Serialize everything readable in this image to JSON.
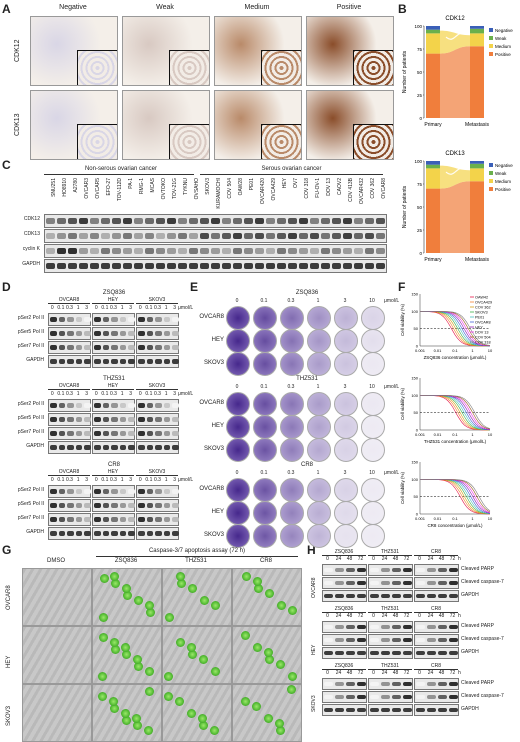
{
  "panel_letters": [
    "A",
    "B",
    "C",
    "D",
    "E",
    "F",
    "G",
    "H"
  ],
  "A": {
    "columns": [
      "Negative",
      "Weak",
      "Medium",
      "Positive"
    ],
    "rows": [
      "CDK12",
      "CDK13"
    ],
    "tint": [
      "#d9d6e6",
      "#d8c9c2",
      "#b98a69",
      "#8a4d2a"
    ]
  },
  "B": {
    "charts": [
      {
        "title": "CDK12",
        "ylabel": "Number of patients",
        "xcats": [
          "Primary",
          "Metastasis"
        ],
        "yticks": [
          "0",
          "25",
          "50",
          "75",
          "100"
        ],
        "legend": [
          "Negative",
          "Weak",
          "Medium",
          "Positive"
        ],
        "colors": [
          "#3a5fb8",
          "#6ab04c",
          "#f3d34a",
          "#f07e3c"
        ]
      },
      {
        "title": "CDK13",
        "ylabel": "Number of patients",
        "xcats": [
          "Primary",
          "Metastasis"
        ],
        "yticks": [
          "0",
          "25",
          "50",
          "75",
          "100"
        ],
        "legend": [
          "Negative",
          "Weak",
          "Medium",
          "Positive"
        ],
        "colors": [
          "#3a5fb8",
          "#6ab04c",
          "#f3d34a",
          "#f07e3c"
        ]
      }
    ]
  },
  "C": {
    "group1": "Non-serous ovarian cancer",
    "group2": "Serous ovarian cancer",
    "lanes": [
      "SNU251",
      "HO8910",
      "A2780",
      "OVCAR3",
      "OVCAR5",
      "EFO-27",
      "TOV-112D",
      "PA-1",
      "RMG-1",
      "MCAS",
      "OVTOKO",
      "TOV-21G",
      "TYKNU",
      "OVSAHO",
      "SKOV3",
      "KURAMOCHI",
      "COV 504",
      "OAW28",
      "PE01",
      "OVCAR420",
      "OVCA429",
      "HEY",
      "OV7",
      "COV 318",
      "FU-OV-1",
      "DOV 13",
      "CAOV2",
      "COV 413B",
      "OVCAR432",
      "COV 362",
      "OVCAR8"
    ],
    "rows": [
      "CDK12",
      "CDK13",
      "cyclin K",
      "GAPDH"
    ]
  },
  "D": {
    "blocks": [
      {
        "drug": "ZSQ836",
        "cells": [
          "OVCAR8",
          "HEY",
          "SKOV3"
        ],
        "doses": [
          "0",
          "0.1",
          "0.3",
          "1",
          "3"
        ],
        "unit": "μmol/L",
        "rows": [
          "pSer2 Pol II",
          "pSer5 Pol II",
          "pSer7 Pol II",
          "GAPDH"
        ]
      },
      {
        "drug": "THZ531",
        "cells": [
          "OVCAR8",
          "HEY",
          "SKOV3"
        ],
        "doses": [
          "0",
          "0.1",
          "0.3",
          "1",
          "3"
        ],
        "unit": "μmol/L",
        "rows": [
          "pSer2 Pol II",
          "pSer5 Pol II",
          "pSer7 Pol II",
          "GAPDH"
        ]
      },
      {
        "drug": "CR8",
        "cells": [
          "OVCAR8",
          "HEY",
          "SKOV3"
        ],
        "doses": [
          "0",
          "0.1",
          "0.3",
          "1",
          "3"
        ],
        "unit": "μmol/L",
        "rows": [
          "pSer2 Pol II",
          "pSer5 Pol II",
          "pSer7 Pol II",
          "GAPDH"
        ]
      }
    ]
  },
  "E": {
    "blocks": [
      {
        "drug": "ZSQ836",
        "doses": [
          "0",
          "0.1",
          "0.3",
          "1",
          "3",
          "10"
        ],
        "unit": "μmol/L",
        "cells": [
          "OVCAR8",
          "HEY",
          "SKOV3"
        ]
      },
      {
        "drug": "THZ531",
        "doses": [
          "0",
          "0.1",
          "0.3",
          "1",
          "3",
          "10"
        ],
        "unit": "μmol/L",
        "cells": [
          "OVCAR8",
          "HEY",
          "SKOV3"
        ]
      },
      {
        "drug": "CR8",
        "doses": [
          "0",
          "0.1",
          "0.3",
          "1",
          "3",
          "10"
        ],
        "unit": "μmol/L",
        "cells": [
          "OVCAR8",
          "HEY",
          "SKOV3"
        ]
      }
    ]
  },
  "F": {
    "ylabel": "Cell viability (%)",
    "xticks": [
      "0.001",
      "0.01",
      "0.1",
      "1",
      "10"
    ],
    "yticks": [
      "0",
      "50",
      "100",
      "150"
    ],
    "xlabels": [
      "ZSQ836 concentration (μmol/L)",
      "THZ531 concentration (μmol/L)",
      "CR8 concentration (μmol/L)"
    ],
    "legend": [
      "OAW42",
      "OVCA429",
      "COV 362",
      "SKOV3",
      "PE01",
      "OVCAR8",
      "HEY",
      "DOV 13",
      "COV 504",
      "COV 318"
    ],
    "colors": [
      "#e6194b",
      "#f58231",
      "#d4a017",
      "#3cb44b",
      "#46c0c0",
      "#4363d8",
      "#911eb4",
      "#f032e6",
      "#9a6324",
      "#808080"
    ]
  },
  "G": {
    "title": "Caspase-3/7 apoptosis assay (72 h)",
    "columns": [
      "DMSO",
      "ZSQ836",
      "THZ531",
      "CR8"
    ],
    "rows": [
      "OVCAR8",
      "HEY",
      "SKOV3"
    ]
  },
  "H": {
    "drugs": [
      "ZSQ836",
      "THZ531",
      "CR8"
    ],
    "timepoints": [
      "0",
      "24",
      "48",
      "72"
    ],
    "unit": "h",
    "cells": [
      "OVCAR8",
      "HEY",
      "SKOV3"
    ],
    "rows": [
      "Cleaved PARP",
      "Cleaved caspase-7",
      "GAPDH"
    ]
  }
}
